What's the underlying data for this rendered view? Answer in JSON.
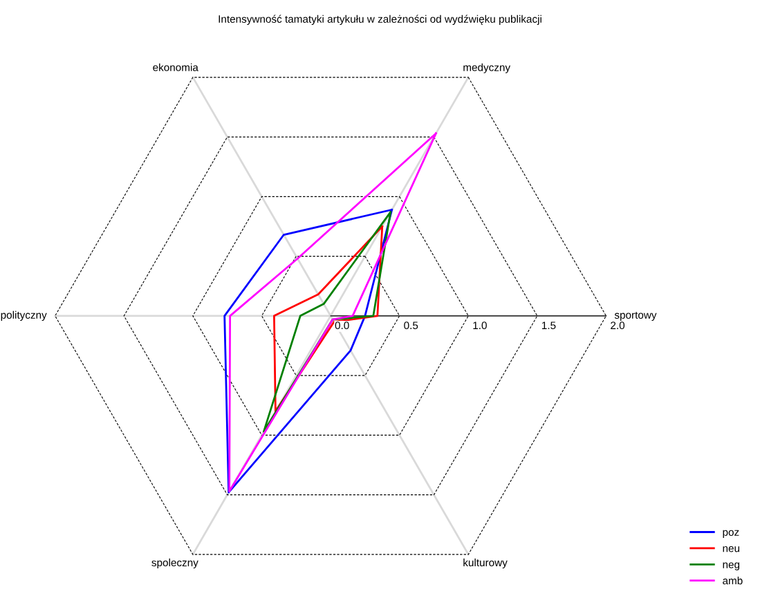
{
  "chart_data": {
    "type": "radar",
    "title": "Intensywność tamatyki artykułu w zależności od wydźwięku publikacji",
    "categories": [
      "medyczny",
      "sportowy",
      "kulturowy",
      "spoleczny",
      "polityczny",
      "ekonomia"
    ],
    "ylim": [
      0,
      2.0
    ],
    "yticks": [
      {
        "value": 0,
        "label": "0.0"
      },
      0.5,
      {
        "value": 1,
        "label": "1.0"
      },
      1.5,
      {
        "value": 2,
        "label": "2.0"
      }
    ],
    "grid": true,
    "legend": "bottom right",
    "line_style": "solid",
    "marker": "none",
    "series": [
      {
        "name": "poz",
        "color": "#0000ff",
        "values": [
          0.89,
          0.25,
          0.29,
          1.48,
          0.77,
          0.68
        ]
      },
      {
        "name": "neu",
        "color": "#ff0000",
        "values": [
          0.75,
          0.34,
          0.05,
          0.8,
          0.41,
          0.18
        ]
      },
      {
        "name": "neg",
        "color": "#008000",
        "values": [
          0.87,
          0.31,
          0.03,
          0.97,
          0.22,
          0.1
        ]
      },
      {
        "name": "amb",
        "color": "#ff00ff",
        "values": [
          1.53,
          0.16,
          0.03,
          1.47,
          0.73,
          0.48
        ]
      }
    ]
  }
}
